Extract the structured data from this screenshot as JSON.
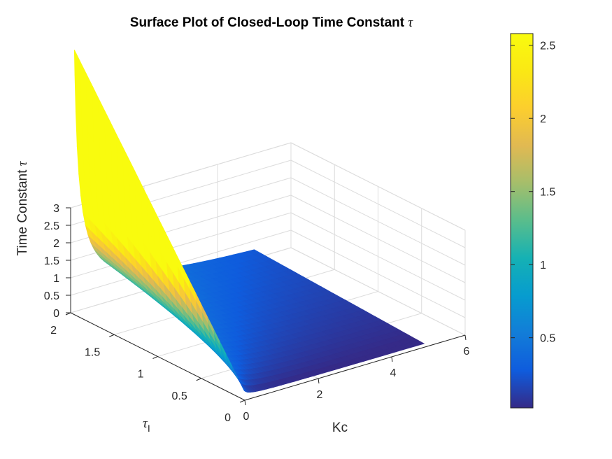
{
  "chart_data": {
    "type": "surface",
    "title": "Surface Plot of Closed-Loop Time Constant",
    "title_symbol": "τ",
    "xlabel": "Kc",
    "ylabel": "τ",
    "ylabel_subscript": "I",
    "zlabel": "Time Constant",
    "zlabel_symbol": "τ",
    "xlim": [
      0,
      6
    ],
    "ylim": [
      0,
      2
    ],
    "zlim": [
      0,
      3
    ],
    "x_ticks": [
      "0",
      "2",
      "4",
      "6"
    ],
    "y_ticks": [
      "0",
      "0.5",
      "1",
      "1.5",
      "2"
    ],
    "z_ticks": [
      "0",
      "0.5",
      "1",
      "1.5",
      "2",
      "2.5",
      "3"
    ],
    "colorbar": {
      "colormap": "parula",
      "range": [
        0.02,
        2.58
      ],
      "ticks": [
        "0.5",
        "1",
        "1.5",
        "2",
        "2.5"
      ]
    },
    "grid": true,
    "surface_samples": {
      "description_free_values": true,
      "Kc_range": [
        0.1,
        5
      ],
      "tauI_range": [
        0.05,
        2
      ],
      "corner_values": [
        {
          "Kc": 0.1,
          "tauI": 2,
          "tau": 2.55
        },
        {
          "Kc": 0.1,
          "tauI": 0.05,
          "tau": 0.05
        },
        {
          "Kc": 5,
          "tauI": 2,
          "tau": 0.45
        },
        {
          "Kc": 5,
          "tauI": 0.05,
          "tau": 0.02
        }
      ]
    }
  }
}
